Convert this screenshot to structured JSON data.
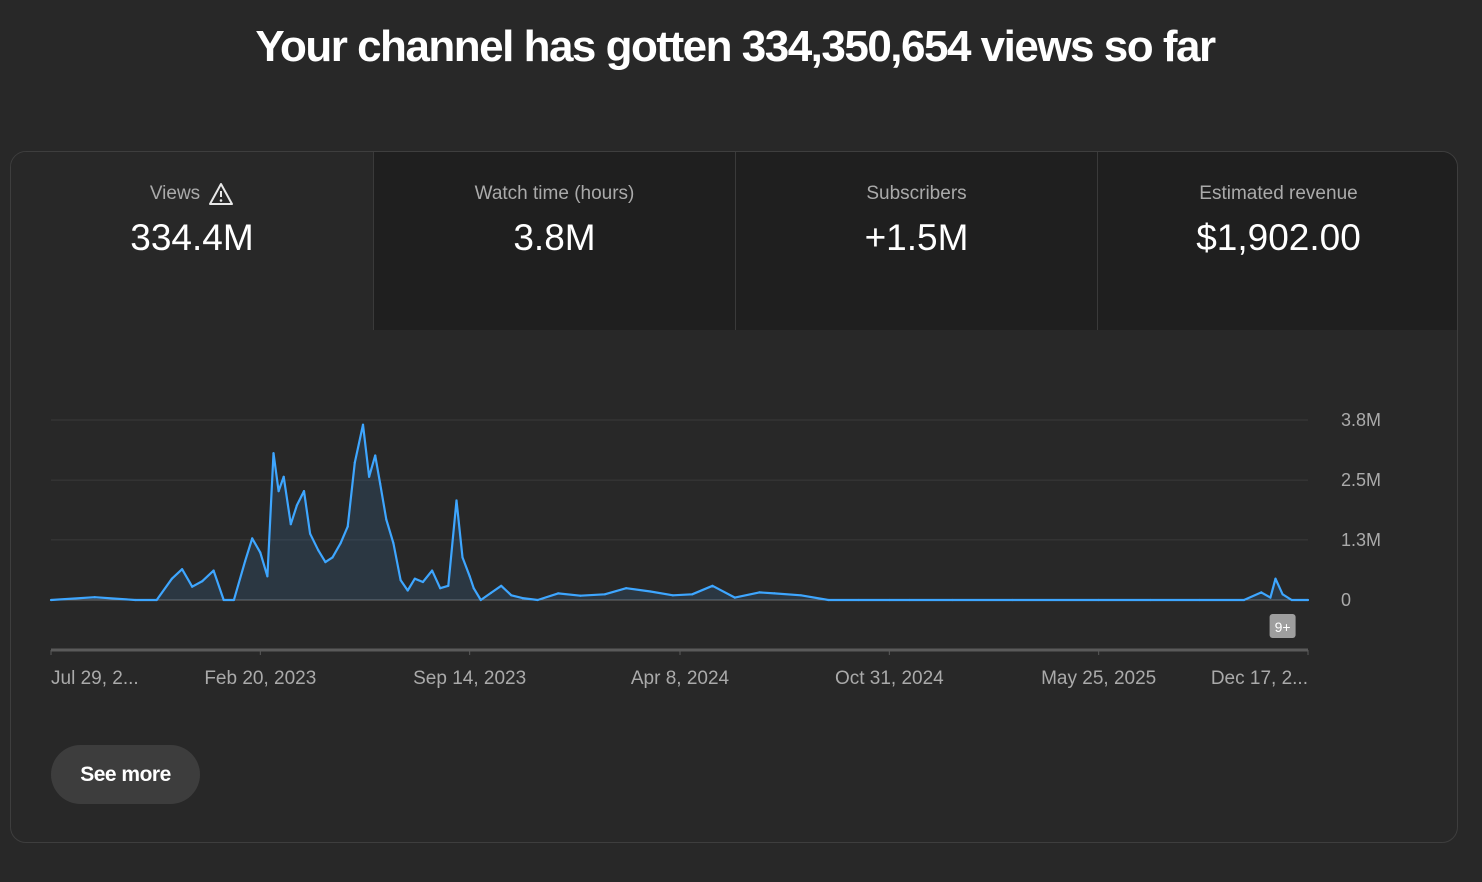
{
  "headline": "Your channel has gotten 334,350,654 views so far",
  "tabs": [
    {
      "label": "Views",
      "value": "334.4M",
      "active": true,
      "icon": "warning-icon"
    },
    {
      "label": "Watch time (hours)",
      "value": "3.8M",
      "active": false
    },
    {
      "label": "Subscribers",
      "value": "+1.5M",
      "active": false
    },
    {
      "label": "Estimated revenue",
      "value": "$1,902.00",
      "active": false
    }
  ],
  "see_more_label": "See more",
  "event_badge": "9+",
  "colors": {
    "line": "#3ea6ff",
    "background": "#282828",
    "tab_inactive": "#1f1f1f",
    "grid": "#3a3a3a"
  },
  "chart_data": {
    "type": "area",
    "title": "",
    "xlabel": "",
    "ylabel": "",
    "y_tick_labels": [
      "0",
      "1.3M",
      "2.5M",
      "3.8M"
    ],
    "y_ticks": [
      0,
      1.27,
      2.53,
      3.8
    ],
    "ylim": [
      0,
      3.8
    ],
    "x_tick_labels": [
      "Jul 29, 2...",
      "Feb 20, 2023",
      "Sep 14, 2023",
      "Apr 8, 2024",
      "Oct 31, 2024",
      "May 25, 2025",
      "Dec 17, 2..."
    ],
    "x_tick_dates": [
      "2022-07-29",
      "2023-02-20",
      "2023-09-14",
      "2024-04-08",
      "2024-10-31",
      "2025-05-25",
      "2025-12-17"
    ],
    "grid": true,
    "series": [
      {
        "values_unit": "millions of views per day",
        "x": [
          "2022-07-29",
          "2022-09-10",
          "2022-10-20",
          "2022-11-10",
          "2022-11-25",
          "2022-12-05",
          "2022-12-15",
          "2022-12-25",
          "2023-01-05",
          "2023-01-15",
          "2023-01-25",
          "2023-02-05",
          "2023-02-12",
          "2023-02-20",
          "2023-02-27",
          "2023-03-05",
          "2023-03-10",
          "2023-03-15",
          "2023-03-22",
          "2023-03-28",
          "2023-04-04",
          "2023-04-10",
          "2023-04-18",
          "2023-04-25",
          "2023-05-02",
          "2023-05-10",
          "2023-05-17",
          "2023-05-24",
          "2023-06-01",
          "2023-06-07",
          "2023-06-13",
          "2023-06-18",
          "2023-06-24",
          "2023-07-01",
          "2023-07-08",
          "2023-07-15",
          "2023-07-22",
          "2023-07-30",
          "2023-08-08",
          "2023-08-16",
          "2023-08-24",
          "2023-09-01",
          "2023-09-07",
          "2023-09-14",
          "2023-09-18",
          "2023-09-25",
          "2023-10-05",
          "2023-10-15",
          "2023-10-25",
          "2023-11-05",
          "2023-11-20",
          "2023-12-10",
          "2024-01-01",
          "2024-01-25",
          "2024-02-15",
          "2024-03-10",
          "2024-04-01",
          "2024-04-20",
          "2024-05-10",
          "2024-06-01",
          "2024-06-25",
          "2024-07-10",
          "2024-08-05",
          "2024-09-01",
          "2024-10-01",
          "2024-10-31",
          "2024-11-20",
          "2025-01-01",
          "2025-03-01",
          "2025-05-25",
          "2025-07-15",
          "2025-09-01",
          "2025-10-15",
          "2025-11-01",
          "2025-11-10",
          "2025-11-15",
          "2025-11-22",
          "2025-12-01",
          "2025-12-17"
        ],
        "values": [
          0.0,
          0.06,
          0.0,
          0.0,
          0.45,
          0.65,
          0.28,
          0.4,
          0.62,
          0.0,
          0.0,
          0.82,
          1.3,
          1.0,
          0.5,
          3.1,
          2.3,
          2.6,
          1.6,
          2.0,
          2.3,
          1.4,
          1.05,
          0.8,
          0.9,
          1.2,
          1.55,
          2.9,
          3.7,
          2.6,
          3.05,
          2.45,
          1.7,
          1.2,
          0.42,
          0.2,
          0.45,
          0.38,
          0.62,
          0.25,
          0.3,
          2.1,
          0.9,
          0.5,
          0.25,
          0.0,
          0.15,
          0.3,
          0.1,
          0.04,
          0.0,
          0.14,
          0.09,
          0.12,
          0.25,
          0.18,
          0.1,
          0.12,
          0.3,
          0.05,
          0.16,
          0.14,
          0.1,
          0.0,
          0.0,
          0.0,
          0.0,
          0.0,
          0.0,
          0.0,
          0.0,
          0.0,
          0.0,
          0.16,
          0.05,
          0.45,
          0.12,
          0.0,
          0.0
        ]
      }
    ]
  }
}
